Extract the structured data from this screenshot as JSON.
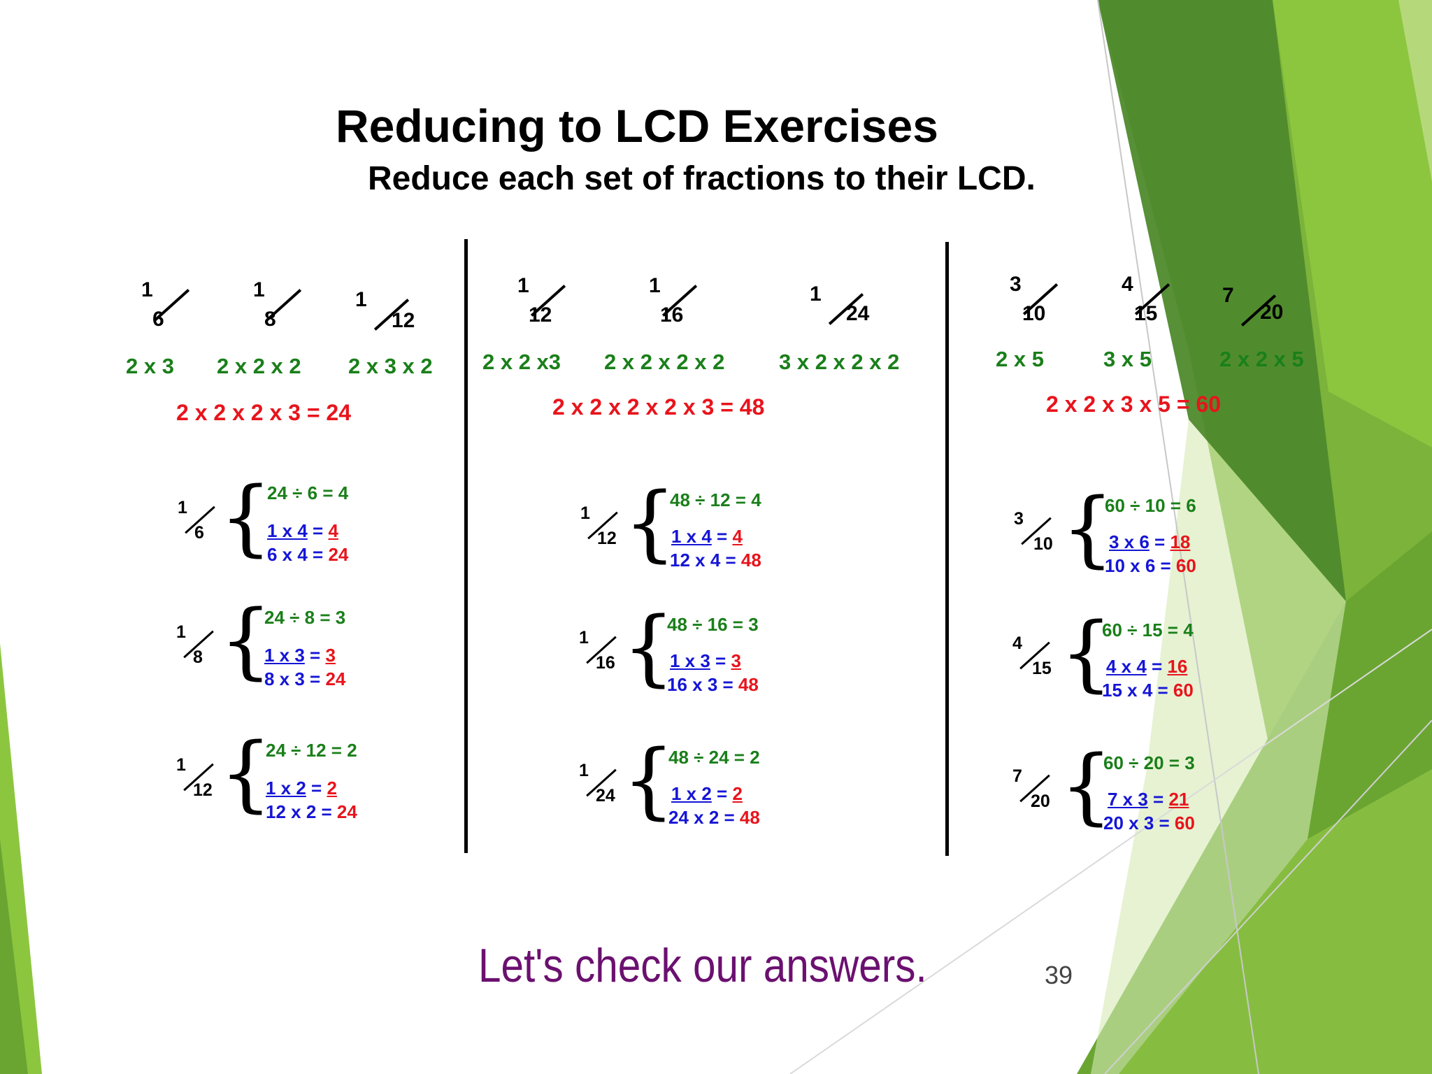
{
  "slide": {
    "title": "Reducing to LCD Exercises",
    "subtitle": "Reduce each set of fractions to their LCD.",
    "footer_text": "Let's check our answers.",
    "page_number": "39"
  },
  "colors": {
    "factor_green": "#1a7f1a",
    "lcd_red": "#e8141c",
    "multiply_blue": "#1515d6",
    "footer_purple": "#6b1070"
  },
  "columns": [
    {
      "fractions": [
        {
          "num": "1",
          "den": "6",
          "factors": "2 x 3"
        },
        {
          "num": "1",
          "den": "8",
          "factors": "2 x 2 x 2"
        },
        {
          "num": "1",
          "den": "12",
          "factors": "2 x 3 x 2"
        }
      ],
      "lcd": "2 x 2 x 2 x 3 = 24",
      "steps": [
        {
          "num": "1",
          "den": "6",
          "division": "24 ÷ 6 = 4",
          "top_left": "1 x 4",
          "top_eq": " = ",
          "top_result": "4",
          "bottom": "6 x 4 = ",
          "bottom_result": "24"
        },
        {
          "num": "1",
          "den": "8",
          "division": "24 ÷ 8 = 3",
          "top_left": "1 x 3",
          "top_eq": " = ",
          "top_result": "3",
          "bottom": "8 x 3 = ",
          "bottom_result": "24"
        },
        {
          "num": "1",
          "den": "12",
          "division": "24 ÷ 12 = 2",
          "top_left": "1 x 2",
          "top_eq": " = ",
          "top_result": "2",
          "bottom": "12 x 2 = ",
          "bottom_result": "24"
        }
      ]
    },
    {
      "fractions": [
        {
          "num": "1",
          "den": "12",
          "factors": "2 x 2 x3"
        },
        {
          "num": "1",
          "den": "16",
          "factors": "2 x 2 x 2 x 2"
        },
        {
          "num": "1",
          "den": "24",
          "factors": "3 x 2 x 2 x 2"
        }
      ],
      "lcd": "2 x 2 x 2 x 2 x 3 = 48",
      "steps": [
        {
          "num": "1",
          "den": "12",
          "division": "48 ÷ 12 = 4",
          "top_left": "1 x 4",
          "top_eq": " = ",
          "top_result": "4",
          "bottom": "12 x 4 = ",
          "bottom_result": "48"
        },
        {
          "num": "1",
          "den": "16",
          "division": "48 ÷ 16 = 3",
          "top_left": "1 x 3",
          "top_eq": " = ",
          "top_result": "3",
          "bottom": "16 x 3 = ",
          "bottom_result": "48"
        },
        {
          "num": "1",
          "den": "24",
          "division": "48 ÷ 24 = 2",
          "top_left": "1 x 2",
          "top_eq": " = ",
          "top_result": "2",
          "bottom": "24 x 2 = ",
          "bottom_result": "48"
        }
      ]
    },
    {
      "fractions": [
        {
          "num": "3",
          "den": "10",
          "factors": "2 x 5"
        },
        {
          "num": "4",
          "den": "15",
          "factors": "3 x 5"
        },
        {
          "num": "7",
          "den": "20",
          "factors": "2 x 2 x 5"
        }
      ],
      "lcd": "2 x 2 x 3 x 5 = 60",
      "steps": [
        {
          "num": "3",
          "den": "10",
          "division": "60 ÷ 10 = 6",
          "top_left": "3 x 6",
          "top_eq": " = ",
          "top_result": "18",
          "bottom": "10 x 6 = ",
          "bottom_result": "60"
        },
        {
          "num": "4",
          "den": "15",
          "division": "60 ÷ 15 = 4",
          "top_left": "4 x 4",
          "top_eq": " = ",
          "top_result": "16",
          "bottom": "15 x 4 = ",
          "bottom_result": "60"
        },
        {
          "num": "7",
          "den": "20",
          "division": "60 ÷ 20 = 3",
          "top_left": "7 x 3",
          "top_eq": " = ",
          "top_result": "21",
          "bottom": "20 x 3 = ",
          "bottom_result": "60"
        }
      ]
    }
  ]
}
